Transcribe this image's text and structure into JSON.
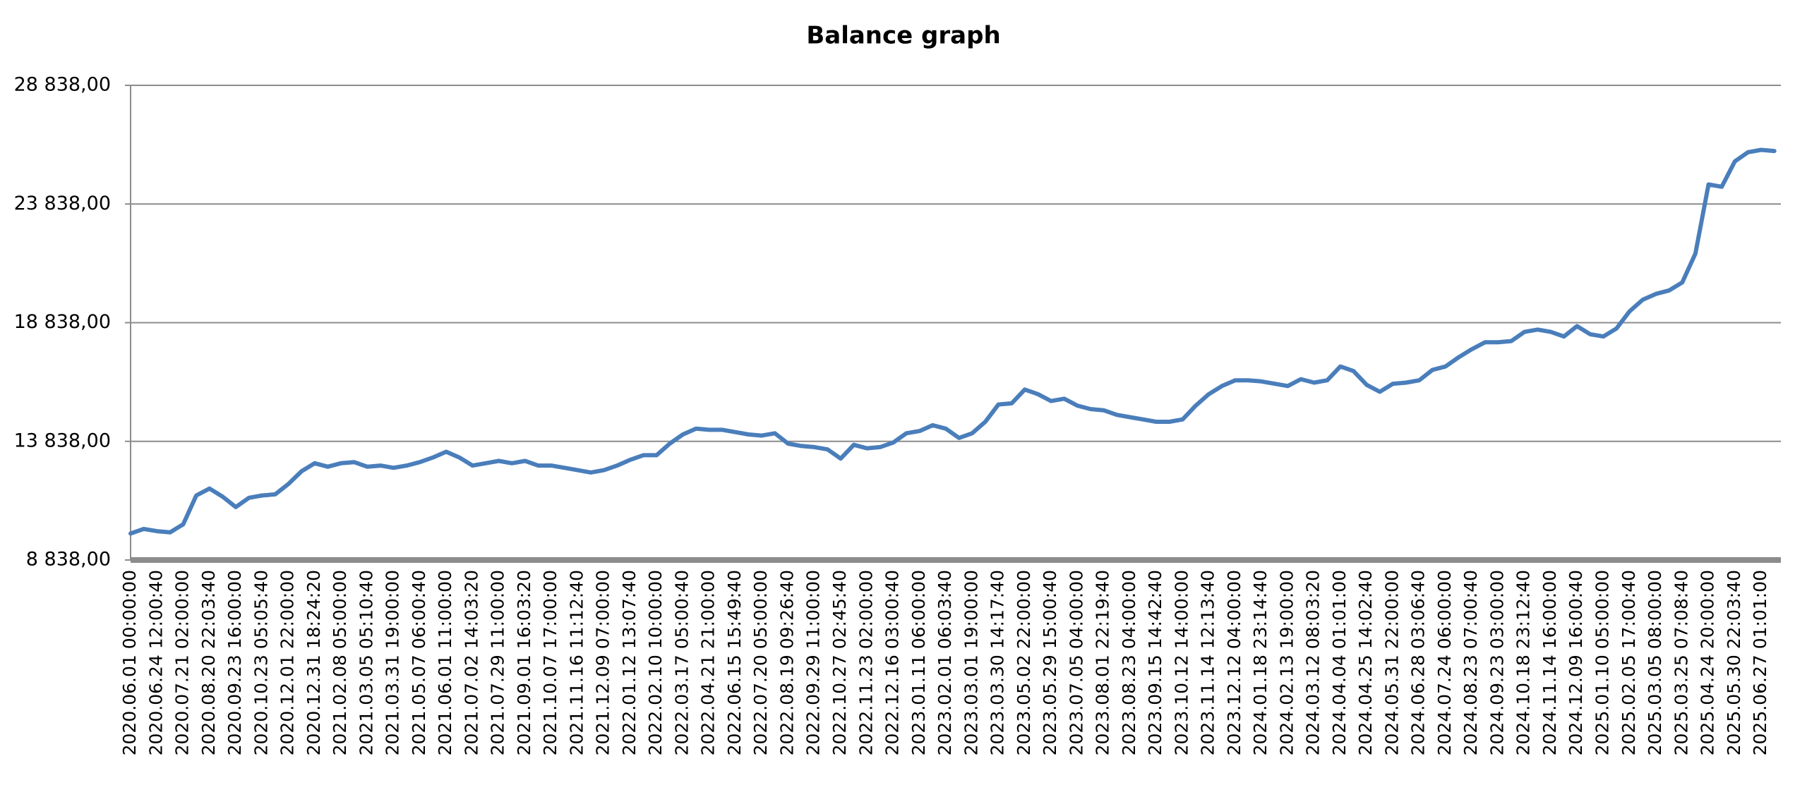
{
  "chart_data": {
    "type": "line",
    "title": "Balance graph",
    "categories": [
      "2020.06.01 00:00:00",
      null,
      "2020.06.24 12:00:40",
      null,
      "2020.07.21 02:00:00",
      null,
      "2020.08.20 22:03:40",
      null,
      "2020.09.23 16:00:00",
      null,
      "2020.10.23 05:05:40",
      null,
      "2020.12.01 22:00:00",
      null,
      "2020.12.31 18:24:20",
      null,
      "2021.02.08 05:00:00",
      null,
      "2021.03.05 05:10:40",
      null,
      "2021.03.31 19:00:00",
      null,
      "2021.05.07 06:00:40",
      null,
      "2021.06.01 11:00:00",
      null,
      "2021.07.02 14:03:20",
      null,
      "2021.07.29 11:00:00",
      null,
      "2021.09.01 16:03:20",
      null,
      "2021.10.07 17:00:00",
      null,
      "2021.11.16 11:12:40",
      null,
      "2021.12.09 07:00:00",
      null,
      "2022.01.12 13:07:40",
      null,
      "2022.02.10 10:00:00",
      null,
      "2022.03.17 05:00:40",
      null,
      "2022.04.21 21:00:00",
      null,
      "2022.06.15 15:49:40",
      null,
      "2022.07.20 05:00:00",
      null,
      "2022.08.19 09:26:40",
      null,
      "2022.09.29 11:00:00",
      null,
      "2022.10.27 02:45:40",
      null,
      "2022.11.23 02:00:00",
      null,
      "2022.12.16 03:00:40",
      null,
      "2023.01.11 06:00:00",
      null,
      "2023.02.01 06:03:40",
      null,
      "2023.03.01 19:00:00",
      null,
      "2023.03.30 14:17:40",
      null,
      "2023.05.02 22:00:00",
      null,
      "2023.05.29 15:00:40",
      null,
      "2023.07.05 04:00:00",
      null,
      "2023.08.01 22:19:40",
      null,
      "2023.08.23 04:00:00",
      null,
      "2023.09.15 14:42:40",
      null,
      "2023.10.12 14:00:00",
      null,
      "2023.11.14 12:13:40",
      null,
      "2023.12.12 04:00:00",
      null,
      "2024.01.18 23:14:40",
      null,
      "2024.02.13 19:00:00",
      null,
      "2024.03.12 08:03:20",
      null,
      "2024.04.04 01:01:00",
      null,
      "2024.04.25 14:02:40",
      null,
      "2024.05.31 22:00:00",
      null,
      "2024.06.28 03:06:40",
      null,
      "2024.07.24 06:00:00",
      null,
      "2024.08.23 07:00:40",
      null,
      "2024.09.23 03:00:00",
      null,
      "2024.10.18 23:12:40",
      null,
      "2024.11.14 16:00:00",
      null,
      "2024.12.09 16:00:40",
      null,
      "2025.01.10 05:00:00",
      null,
      "2025.02.05 17:00:40",
      null,
      "2025.03.05 08:00:00",
      null,
      "2025.03.25 07:08:40",
      null,
      "2025.04.24 20:00:00",
      null,
      "2025.05.30 22:03:40",
      null,
      "2025.06.27 01:01:00",
      null
    ],
    "values": [
      9954,
      10149,
      10052,
      10003,
      10343,
      11556,
      11847,
      11508,
      11071,
      11459,
      11556,
      11605,
      12042,
      12576,
      12915,
      12770,
      12915,
      12964,
      12770,
      12818,
      12721,
      12818,
      12964,
      13158,
      13401,
      13158,
      12818,
      12915,
      13012,
      12915,
      13012,
      12818,
      12818,
      12721,
      12624,
      12527,
      12624,
      12818,
      13061,
      13255,
      13255,
      13741,
      14129,
      14372,
      14323,
      14323,
      14226,
      14129,
      14080,
      14177,
      13741,
      13643,
      13595,
      13498,
      13110,
      13692,
      13546,
      13595,
      13789,
      14177,
      14274,
      14517,
      14372,
      13983,
      14177,
      14663,
      15391,
      15439,
      16022,
      15828,
      15537,
      15634,
      15342,
      15197,
      15148,
      14954,
      14857,
      14760,
      14663,
      14663,
      14760,
      15342,
      15828,
      16168,
      16410,
      16410,
      16362,
      16265,
      16168,
      16459,
      16313,
      16410,
      16993,
      16799,
      16216,
      15925,
      16265,
      16313,
      16410,
      16847,
      16993,
      17381,
      17721,
      18012,
      18012,
      18061,
      18449,
      18546,
      18449,
      18255,
      18692,
      18352,
      18255,
      18595,
      19323,
      19808,
      20051,
      20196,
      20536,
      21750,
      24662,
      24565,
      25633,
      26021,
      26118,
      26070
    ],
    "color": "#4a7ebb",
    "ylim": [
      8838,
      28838
    ],
    "yticks": [
      {
        "value": 8838,
        "label": "8 838,00"
      },
      {
        "value": 13838,
        "label": "13 838,00"
      },
      {
        "value": 18838,
        "label": "18 838,00"
      },
      {
        "value": 23838,
        "label": "23 838,00"
      },
      {
        "value": 28838,
        "label": "28 838,00"
      }
    ],
    "grid": true
  }
}
